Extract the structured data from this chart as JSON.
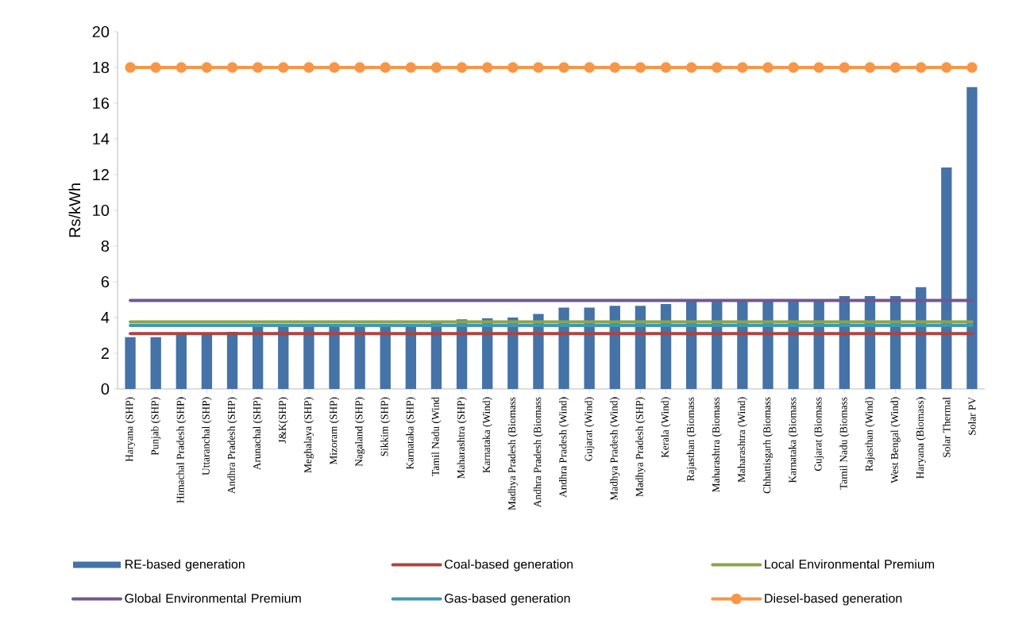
{
  "chart_data": {
    "type": "bar",
    "ylabel": "Rs/kWh",
    "categories": [
      "Haryana (SHP)",
      "Punjab (SHP)",
      "Himachal Pradesh (SHP)",
      "Uttaranchal (SHP)",
      "Andhra Pradesh (SHP)",
      "Arunachal (SHP)",
      "J&K(SHP)",
      "Meghalaya (SHP)",
      "Mizoram (SHP)",
      "Nagaland (SHP)",
      "Sikkim (SHP)",
      "Karnataka (SHP)",
      "Tamil Nadu (Wind",
      "Maharashtra (SHP)",
      "Karnataka (Wind)",
      "Madhya Pradesh (Biomass",
      "Andhra Pradesh (Biomass",
      "Andhra Pradesh (Wind)",
      "Gujarat (Wind)",
      "Madhya Pradesh (Wind)",
      "Madhya Pradesh (SHP)",
      "Kerala (Wind)",
      "Rajasthan (Biomass",
      "Maharashtra (Biomass",
      "Maharashtra (Wind)",
      "Chhattisgarh (Biomass",
      "Karnataka (Biomass",
      "Gujarat (Biomass",
      "Tamil Nadu (Biomass",
      "Rajasthan (Wind)",
      "West Bengal (Wind)",
      "Haryana (Biomass)",
      "Solar Thermal",
      "Solar PV"
    ],
    "series": [
      {
        "name": "RE-based generation",
        "color": "#4572a7",
        "values": [
          2.9,
          2.9,
          3.1,
          3.1,
          3.2,
          3.6,
          3.6,
          3.6,
          3.6,
          3.6,
          3.6,
          3.6,
          3.8,
          3.9,
          3.95,
          4.0,
          4.2,
          4.55,
          4.55,
          4.65,
          4.65,
          4.75,
          4.95,
          4.95,
          4.95,
          4.95,
          4.95,
          4.95,
          5.2,
          5.2,
          5.2,
          5.7,
          12.4,
          16.9
        ]
      },
      {
        "name": "Coal-based generation",
        "type": "line",
        "color": "#aa4643",
        "marker": "none",
        "values": [
          3.1,
          3.1,
          3.1,
          3.1,
          3.1,
          3.1,
          3.1,
          3.1,
          3.1,
          3.1,
          3.1,
          3.1,
          3.1,
          3.1,
          3.1,
          3.1,
          3.1,
          3.1,
          3.1,
          3.1,
          3.1,
          3.1,
          3.1,
          3.1,
          3.1,
          3.1,
          3.1,
          3.1,
          3.1,
          3.1,
          3.1,
          3.1,
          3.1,
          3.1
        ]
      },
      {
        "name": "Local Environmental Premium",
        "type": "line",
        "color": "#89a54e",
        "marker": "none",
        "values": [
          3.75,
          3.75,
          3.75,
          3.75,
          3.75,
          3.75,
          3.75,
          3.75,
          3.75,
          3.75,
          3.75,
          3.75,
          3.75,
          3.75,
          3.75,
          3.75,
          3.75,
          3.75,
          3.75,
          3.75,
          3.75,
          3.75,
          3.75,
          3.75,
          3.75,
          3.75,
          3.75,
          3.75,
          3.75,
          3.75,
          3.75,
          3.75,
          3.75,
          3.75
        ]
      },
      {
        "name": "Global Environmental Premium",
        "type": "line",
        "color": "#71588f",
        "marker": "none",
        "values": [
          4.95,
          4.95,
          4.95,
          4.95,
          4.95,
          4.95,
          4.95,
          4.95,
          4.95,
          4.95,
          4.95,
          4.95,
          4.95,
          4.95,
          4.95,
          4.95,
          4.95,
          4.95,
          4.95,
          4.95,
          4.95,
          4.95,
          4.95,
          4.95,
          4.95,
          4.95,
          4.95,
          4.95,
          4.95,
          4.95,
          4.95,
          4.95,
          4.95,
          4.95
        ]
      },
      {
        "name": "Gas-based generation",
        "type": "line",
        "color": "#4198af",
        "marker": "none",
        "values": [
          3.55,
          3.55,
          3.55,
          3.55,
          3.55,
          3.55,
          3.55,
          3.55,
          3.55,
          3.55,
          3.55,
          3.55,
          3.55,
          3.55,
          3.55,
          3.55,
          3.55,
          3.55,
          3.55,
          3.55,
          3.55,
          3.55,
          3.55,
          3.55,
          3.55,
          3.55,
          3.55,
          3.55,
          3.55,
          3.55,
          3.55,
          3.55,
          3.55,
          3.55
        ]
      },
      {
        "name": "Diesel-based generation",
        "type": "line",
        "color": "#f79646",
        "marker": "circle",
        "values": [
          18,
          18,
          18,
          18,
          18,
          18,
          18,
          18,
          18,
          18,
          18,
          18,
          18,
          18,
          18,
          18,
          18,
          18,
          18,
          18,
          18,
          18,
          18,
          18,
          18,
          18,
          18,
          18,
          18,
          18,
          18,
          18,
          18,
          18
        ]
      }
    ],
    "ylim": [
      0,
      20
    ],
    "yticks": [
      0,
      2,
      4,
      6,
      8,
      10,
      12,
      14,
      16,
      18,
      20
    ],
    "legend": "bottom"
  }
}
